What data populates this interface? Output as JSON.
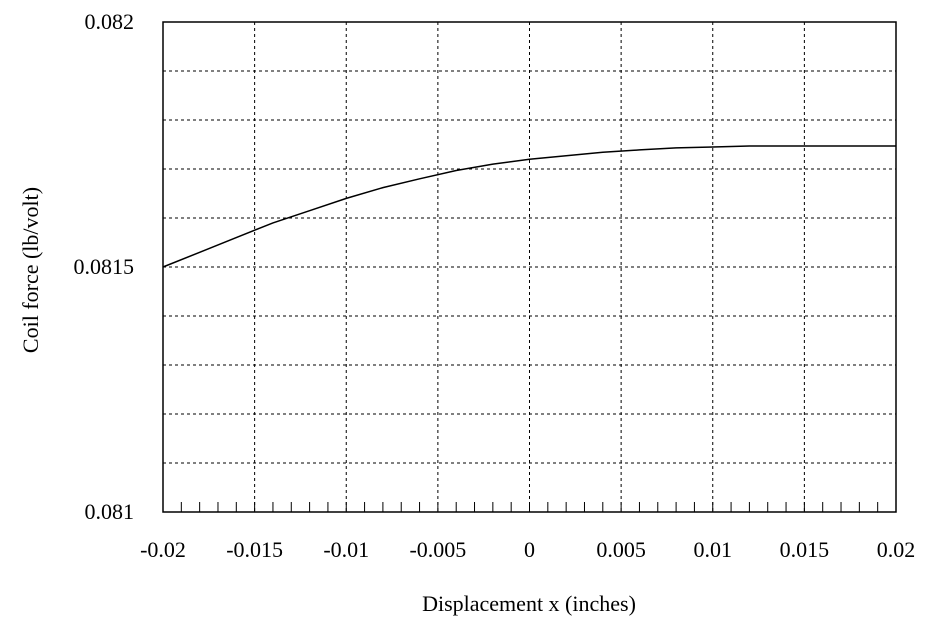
{
  "chart_data": {
    "type": "line",
    "title": "",
    "xlabel": "Displacement  x  (inches)",
    "ylabel": "Coil force  (lb/volt)",
    "xlim": [
      -0.02,
      0.02
    ],
    "ylim": [
      0.081,
      0.082
    ],
    "x_tick_labels": [
      "-0.02",
      "-0.015",
      "-0.01",
      "-0.005",
      "0",
      "0.005",
      "0.01",
      "0.015",
      "0.02"
    ],
    "y_tick_labels": [
      "0.081",
      "0.0815",
      "0.082"
    ],
    "grid": true,
    "legend": "none",
    "series": [
      {
        "color": "#000000",
        "x": [
          -0.02,
          -0.018,
          -0.016,
          -0.014,
          -0.012,
          -0.01,
          -0.008,
          -0.006,
          -0.004,
          -0.002,
          0,
          0.002,
          0.004,
          0.006,
          0.008,
          0.01,
          0.012,
          0.014,
          0.016,
          0.018,
          0.02
        ],
        "y": [
          0.0815,
          0.08153,
          0.08156,
          0.08159,
          0.081615,
          0.08164,
          0.081662,
          0.08168,
          0.081697,
          0.08171,
          0.08172,
          0.081727,
          0.081734,
          0.081739,
          0.081743,
          0.081745,
          0.081747,
          0.081747,
          0.081747,
          0.081747,
          0.081747
        ]
      }
    ]
  }
}
